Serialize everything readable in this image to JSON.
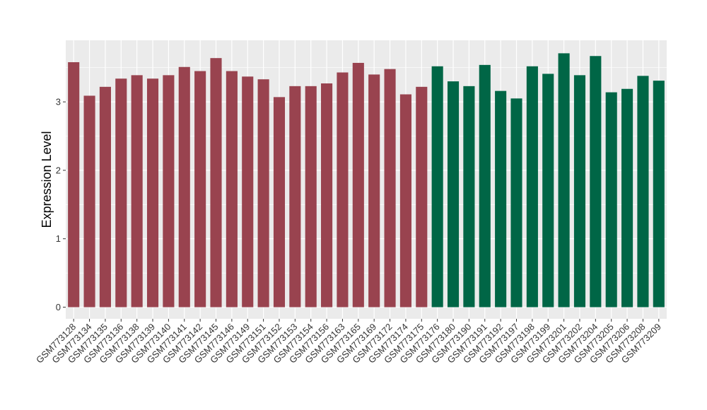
{
  "chart_data": {
    "type": "bar",
    "ylabel": "Expression Level",
    "xlabel": "",
    "ylim": [
      -0.17,
      3.9
    ],
    "yticks": [
      0,
      1,
      2,
      3
    ],
    "background": "#EBEBEB",
    "gridline_color": "#FFFFFF",
    "categories": [
      "GSM773128",
      "GSM773134",
      "GSM773135",
      "GSM773136",
      "GSM773138",
      "GSM773139",
      "GSM773140",
      "GSM773141",
      "GSM773142",
      "GSM773145",
      "GSM773146",
      "GSM773149",
      "GSM773151",
      "GSM773152",
      "GSM773153",
      "GSM773154",
      "GSM773156",
      "GSM773163",
      "GSM773165",
      "GSM773169",
      "GSM773172",
      "GSM773174",
      "GSM773175",
      "GSM773176",
      "GSM773180",
      "GSM773190",
      "GSM773191",
      "GSM773192",
      "GSM773197",
      "GSM773198",
      "GSM773199",
      "GSM773201",
      "GSM773202",
      "GSM773204",
      "GSM773205",
      "GSM773206",
      "GSM773208",
      "GSM773209"
    ],
    "values": [
      3.58,
      3.09,
      3.22,
      3.34,
      3.39,
      3.34,
      3.39,
      3.51,
      3.45,
      3.64,
      3.45,
      3.37,
      3.33,
      3.07,
      3.23,
      3.23,
      3.27,
      3.43,
      3.57,
      3.4,
      3.48,
      3.11,
      3.22,
      3.52,
      3.3,
      3.23,
      3.54,
      3.16,
      3.05,
      3.52,
      3.41,
      3.71,
      3.39,
      3.67,
      3.14,
      3.19,
      3.38,
      3.31
    ],
    "bar_colors": [
      "#99434F",
      "#99434F",
      "#99434F",
      "#99434F",
      "#99434F",
      "#99434F",
      "#99434F",
      "#99434F",
      "#99434F",
      "#99434F",
      "#99434F",
      "#99434F",
      "#99434F",
      "#99434F",
      "#99434F",
      "#99434F",
      "#99434F",
      "#99434F",
      "#99434F",
      "#99434F",
      "#99434F",
      "#99434F",
      "#99434F",
      "#006646",
      "#006646",
      "#006646",
      "#006646",
      "#006646",
      "#006646",
      "#006646",
      "#006646",
      "#006646",
      "#006646",
      "#006646",
      "#006646",
      "#006646",
      "#006646",
      "#006646"
    ]
  }
}
